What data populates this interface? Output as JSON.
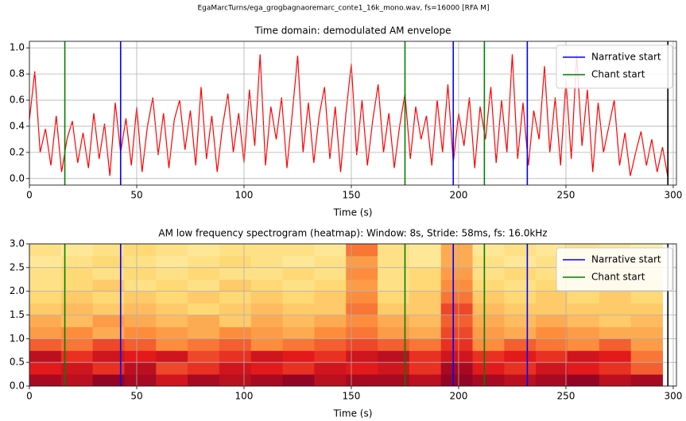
{
  "figure_title": "EgaMarcTurns/ega_grogbagnaoremarc_conte1_16k_mono.wav, fs=16000 [RFA M]",
  "chart_data": [
    {
      "type": "line",
      "title": "Time domain: demodulated AM envelope",
      "xlabel": "Time (s)",
      "color": "#ff0000",
      "grid": true,
      "legend": "upper right",
      "x": [
        0,
        2.5,
        5,
        7.5,
        10,
        12.5,
        15,
        17.5,
        20,
        22.5,
        25,
        27.5,
        30,
        32.5,
        35,
        37.5,
        40,
        42.5,
        45,
        47.5,
        50,
        52.5,
        55,
        57.5,
        60,
        62.5,
        65,
        67.5,
        70,
        72.5,
        75,
        77.5,
        80,
        82.5,
        85,
        87.5,
        90,
        92.5,
        95,
        97.5,
        100,
        102.5,
        105,
        107.5,
        110,
        112.5,
        115,
        117.5,
        120,
        122.5,
        125,
        127.5,
        130,
        132.5,
        135,
        137.5,
        140,
        142.5,
        145,
        147.5,
        150,
        152.5,
        155,
        157.5,
        160,
        162.5,
        165,
        167.5,
        170,
        172.5,
        175,
        177.5,
        180,
        182.5,
        185,
        187.5,
        190,
        192.5,
        195,
        197.5,
        200,
        202.5,
        205,
        207.5,
        210,
        212.5,
        215,
        217.5,
        220,
        222.5,
        225,
        227.5,
        230,
        232.5,
        235,
        237.5,
        240,
        242.5,
        245,
        247.5,
        250,
        252.5,
        255,
        257.5,
        260,
        262.5,
        265,
        267.5,
        270,
        272.5,
        275,
        277.5,
        280,
        282.5,
        285,
        287.5,
        290,
        292.5,
        295,
        297.5
      ],
      "values": [
        0.45,
        0.82,
        0.2,
        0.38,
        0.1,
        0.48,
        0.05,
        0.3,
        0.44,
        0.12,
        0.35,
        0.08,
        0.5,
        0.15,
        0.42,
        0.02,
        0.58,
        0.2,
        0.46,
        0.1,
        0.55,
        0.05,
        0.4,
        0.62,
        0.18,
        0.5,
        0.08,
        0.45,
        0.6,
        0.22,
        0.52,
        0.1,
        0.7,
        0.15,
        0.48,
        0.05,
        0.4,
        0.65,
        0.2,
        0.5,
        0.12,
        0.68,
        0.25,
        0.95,
        0.1,
        0.55,
        0.3,
        0.62,
        0.08,
        0.5,
        0.94,
        0.2,
        0.58,
        0.12,
        0.48,
        0.7,
        0.15,
        0.55,
        0.05,
        0.5,
        0.88,
        0.18,
        0.6,
        0.1,
        0.45,
        0.72,
        0.2,
        0.5,
        0.08,
        0.4,
        0.65,
        0.15,
        0.55,
        0.3,
        0.48,
        0.1,
        0.6,
        0.2,
        0.72,
        0.12,
        0.5,
        0.25,
        0.62,
        0.08,
        0.55,
        0.3,
        0.7,
        0.12,
        0.6,
        0.2,
        0.95,
        0.15,
        0.58,
        0.1,
        0.52,
        0.3,
        0.86,
        0.2,
        0.62,
        0.1,
        0.75,
        0.15,
        0.95,
        0.25,
        0.68,
        0.05,
        0.58,
        0.2,
        0.4,
        0.6,
        0.1,
        0.35,
        0.02,
        0.2,
        0.36,
        0.1,
        0.3,
        0.05,
        0.24,
        0.01
      ],
      "events": [
        {
          "name": "Narrative start",
          "color": "#0000ff",
          "x": [
            42.5,
            197.5,
            232
          ]
        },
        {
          "name": "Chant start",
          "color": "#008000",
          "x": [
            16.5,
            175,
            212
          ]
        }
      ],
      "end_line": {
        "color": "#000000",
        "x": 297.5
      },
      "xlim": [
        0,
        301.5
      ],
      "xticks": [
        0,
        50,
        100,
        150,
        200,
        250,
        300
      ],
      "ylim": [
        -0.05,
        1.05
      ],
      "yticks": [
        {
          "value": 0,
          "label": "0.0"
        },
        0.2,
        0.4,
        0.6,
        0.8,
        {
          "value": 1,
          "label": "1.0"
        }
      ]
    },
    {
      "type": "heatmap",
      "title": "AM low frequency spectrogram (heatmap): Window: 8s, Stride: 58ms, fs: 16.0kHz",
      "xlabel": "Time (s)",
      "grid": true,
      "legend": "upper right",
      "colormap": [
        "#ffffcc",
        "#fed976",
        "#fd8d3c",
        "#e31a1c",
        "#800026"
      ],
      "zlim": [
        0,
        1
      ],
      "x_edges": [
        0,
        14.75,
        29.5,
        44.25,
        59,
        73.75,
        88.5,
        103.25,
        118,
        132.75,
        147.5,
        162.25,
        177,
        191.75,
        206.5,
        221.25,
        236,
        250.75,
        265.5,
        280.25,
        295
      ],
      "y_edges": [
        0,
        0.25,
        0.5,
        0.75,
        1,
        1.25,
        1.5,
        1.75,
        2,
        2.25,
        2.5,
        2.75,
        3
      ],
      "z": [
        [
          0.9,
          0.85,
          0.95,
          0.9,
          0.8,
          0.9,
          0.85,
          0.9,
          0.95,
          0.85,
          0.9,
          0.9,
          0.85,
          0.95,
          0.9,
          0.85,
          0.9,
          0.95,
          0.85,
          0.9
        ],
        [
          0.75,
          0.8,
          0.7,
          0.85,
          0.65,
          0.7,
          0.8,
          0.75,
          0.7,
          0.8,
          0.75,
          0.8,
          0.7,
          0.9,
          0.75,
          0.7,
          0.8,
          0.75,
          0.7,
          0.6
        ],
        [
          0.85,
          0.7,
          0.8,
          0.75,
          0.8,
          0.65,
          0.7,
          0.8,
          0.75,
          0.7,
          0.8,
          0.85,
          0.7,
          0.8,
          0.7,
          0.75,
          0.7,
          0.8,
          0.75,
          0.55
        ],
        [
          0.6,
          0.55,
          0.65,
          0.6,
          0.5,
          0.55,
          0.6,
          0.5,
          0.55,
          0.6,
          0.65,
          0.6,
          0.55,
          0.7,
          0.5,
          0.6,
          0.55,
          0.5,
          0.6,
          0.45
        ],
        [
          0.45,
          0.5,
          0.4,
          0.5,
          0.45,
          0.4,
          0.5,
          0.45,
          0.4,
          0.5,
          0.55,
          0.45,
          0.4,
          0.65,
          0.45,
          0.4,
          0.5,
          0.45,
          0.4,
          0.4
        ],
        [
          0.4,
          0.35,
          0.45,
          0.4,
          0.35,
          0.4,
          0.3,
          0.4,
          0.35,
          0.4,
          0.5,
          0.4,
          0.35,
          0.6,
          0.4,
          0.35,
          0.4,
          0.35,
          0.3,
          0.35
        ],
        [
          0.3,
          0.35,
          0.3,
          0.35,
          0.3,
          0.25,
          0.3,
          0.35,
          0.3,
          0.3,
          0.55,
          0.3,
          0.3,
          0.65,
          0.35,
          0.3,
          0.3,
          0.3,
          0.3,
          0.3
        ],
        [
          0.25,
          0.3,
          0.25,
          0.3,
          0.25,
          0.3,
          0.25,
          0.3,
          0.25,
          0.3,
          0.5,
          0.25,
          0.3,
          0.55,
          0.3,
          0.25,
          0.3,
          0.25,
          0.3,
          0.25
        ],
        [
          0.2,
          0.25,
          0.3,
          0.2,
          0.25,
          0.2,
          0.3,
          0.25,
          0.2,
          0.25,
          0.45,
          0.2,
          0.25,
          0.5,
          0.25,
          0.2,
          0.25,
          0.2,
          0.25,
          0.2
        ],
        [
          0.2,
          0.25,
          0.2,
          0.25,
          0.2,
          0.25,
          0.2,
          0.2,
          0.25,
          0.2,
          0.5,
          0.2,
          0.25,
          0.45,
          0.2,
          0.25,
          0.2,
          0.2,
          0.2,
          0.15
        ],
        [
          0.15,
          0.2,
          0.25,
          0.2,
          0.15,
          0.2,
          0.25,
          0.2,
          0.15,
          0.2,
          0.45,
          0.2,
          0.15,
          0.4,
          0.2,
          0.15,
          0.2,
          0.2,
          0.15,
          0.15
        ],
        [
          0.2,
          0.15,
          0.2,
          0.25,
          0.2,
          0.15,
          0.2,
          0.2,
          0.2,
          0.15,
          0.55,
          0.2,
          0.15,
          0.4,
          0.15,
          0.2,
          0.15,
          0.2,
          0.15,
          0.1
        ]
      ],
      "events": [
        {
          "name": "Narrative start",
          "color": "#0000ff",
          "x": [
            42.5,
            197.5,
            232
          ]
        },
        {
          "name": "Chant start",
          "color": "#008000",
          "x": [
            16.5,
            175,
            212
          ]
        }
      ],
      "end_line": {
        "color": "#000000",
        "x": 297.5
      },
      "xlim": [
        0,
        301.5
      ],
      "xticks": [
        0,
        50,
        100,
        150,
        200,
        250,
        300
      ],
      "ylim": [
        0,
        3
      ],
      "yticks": [
        {
          "value": 0,
          "label": "0.0"
        },
        0.5,
        {
          "value": 1,
          "label": "1.0"
        },
        1.5,
        {
          "value": 2,
          "label": "2.0"
        },
        2.5,
        {
          "value": 3,
          "label": "3.0"
        }
      ]
    }
  ]
}
